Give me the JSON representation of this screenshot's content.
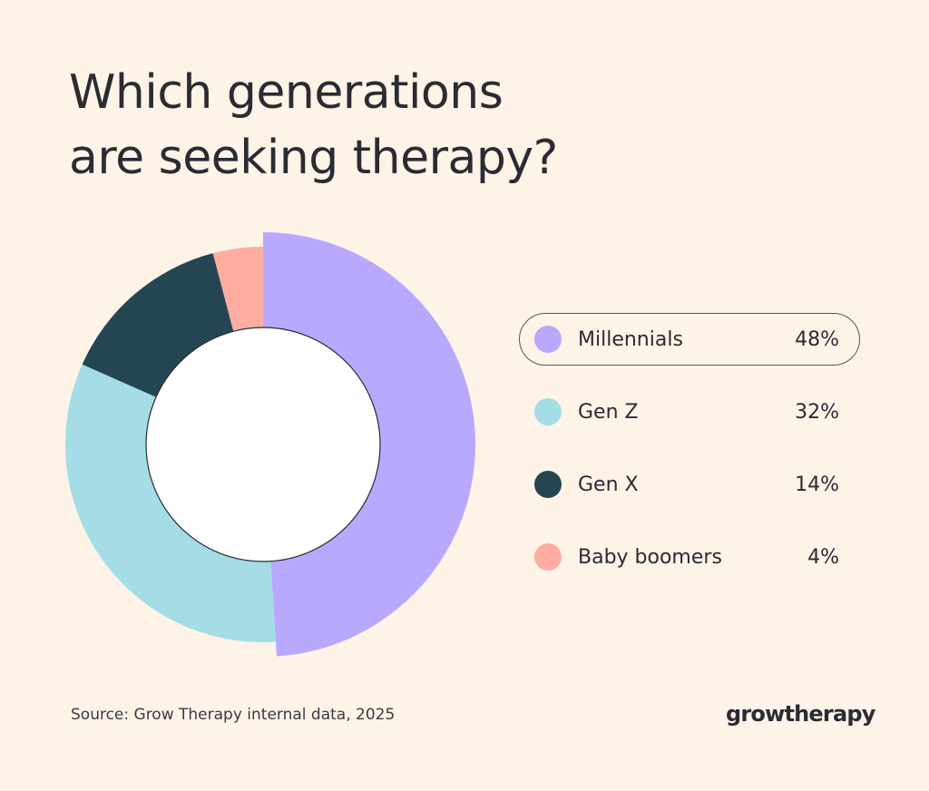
{
  "title_lines": [
    "Which generations",
    "are seeking therapy?"
  ],
  "source": "Source: Grow Therapy internal data, 2025",
  "logo": "growtherapy",
  "chart_data": {
    "type": "pie",
    "variant": "donut",
    "title": "Which generations are seeking therapy?",
    "categories": [
      "Millennials",
      "Gen Z",
      "Gen X",
      "Baby boomers"
    ],
    "values": [
      48,
      32,
      14,
      4
    ],
    "labels": [
      "48%",
      "32%",
      "14%",
      "4%"
    ],
    "colors": [
      "#b8a9ff",
      "#a4dde6",
      "#244652",
      "#ffada0"
    ],
    "highlighted": "Millennials",
    "legend_position": "right"
  }
}
